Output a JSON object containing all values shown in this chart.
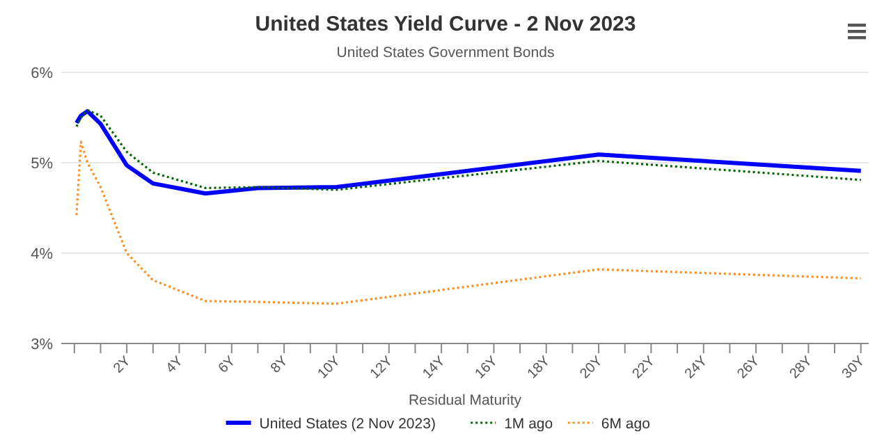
{
  "chart_data": {
    "type": "line",
    "title": "United States Yield Curve - 2 Nov 2023",
    "subtitle": "United States Government Bonds",
    "xlabel": "Residual Maturity",
    "x": [
      0.083,
      0.25,
      0.5,
      1,
      2,
      3,
      5,
      7,
      10,
      20,
      30
    ],
    "series": [
      {
        "name": "United States (2 Nov 2023)",
        "color": "#0000ff",
        "line_style": "solid",
        "values": [
          5.44,
          5.52,
          5.57,
          5.43,
          4.97,
          4.77,
          4.66,
          4.72,
          4.73,
          5.09,
          4.91
        ]
      },
      {
        "name": "1M ago",
        "color": "#006400",
        "line_style": "dotted",
        "values": [
          5.4,
          5.5,
          5.58,
          5.52,
          5.12,
          4.89,
          4.72,
          4.73,
          4.7,
          5.02,
          4.81
        ]
      },
      {
        "name": "6M ago",
        "color": "#ff8c1a",
        "line_style": "dotted",
        "values": [
          4.42,
          5.23,
          5.0,
          4.73,
          4.0,
          3.7,
          3.47,
          3.46,
          3.44,
          3.82,
          3.72
        ]
      }
    ],
    "xlim": [
      -0.5,
      30.3
    ],
    "xticks": [
      {
        "value": 0,
        "label": null
      },
      {
        "value": 1,
        "label": null
      },
      {
        "value": 2,
        "label": "2Y"
      },
      {
        "value": 3,
        "label": null
      },
      {
        "value": 4,
        "label": "4Y"
      },
      {
        "value": 5,
        "label": null
      },
      {
        "value": 6,
        "label": "6Y"
      },
      {
        "value": 7,
        "label": null
      },
      {
        "value": 8,
        "label": "8Y"
      },
      {
        "value": 9,
        "label": null
      },
      {
        "value": 10,
        "label": "10Y"
      },
      {
        "value": 11,
        "label": null
      },
      {
        "value": 12,
        "label": "12Y"
      },
      {
        "value": 13,
        "label": null
      },
      {
        "value": 14,
        "label": "14Y"
      },
      {
        "value": 15,
        "label": null
      },
      {
        "value": 16,
        "label": "16Y"
      },
      {
        "value": 17,
        "label": null
      },
      {
        "value": 18,
        "label": "18Y"
      },
      {
        "value": 19,
        "label": null
      },
      {
        "value": 20,
        "label": "20Y"
      },
      {
        "value": 21,
        "label": null
      },
      {
        "value": 22,
        "label": "22Y"
      },
      {
        "value": 23,
        "label": null
      },
      {
        "value": 24,
        "label": "24Y"
      },
      {
        "value": 25,
        "label": null
      },
      {
        "value": 26,
        "label": "26Y"
      },
      {
        "value": 27,
        "label": null
      },
      {
        "value": 28,
        "label": "28Y"
      },
      {
        "value": 29,
        "label": null
      },
      {
        "value": 30,
        "label": "30Y"
      }
    ],
    "ylim": [
      3,
      6
    ],
    "yticks": [
      {
        "value": 3,
        "label": "3%"
      },
      {
        "value": 4,
        "label": "4%"
      },
      {
        "value": 5,
        "label": "5%"
      },
      {
        "value": 6,
        "label": "6%"
      }
    ],
    "grid": "y",
    "legend": "bottom",
    "marker": "none"
  }
}
